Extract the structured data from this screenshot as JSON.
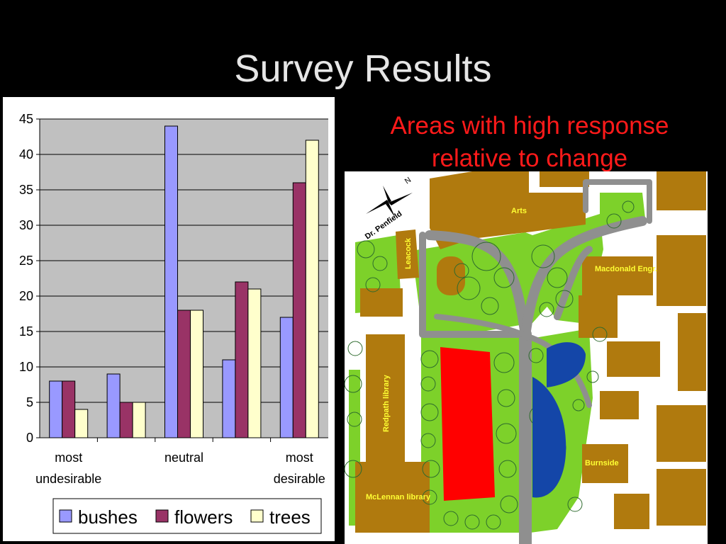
{
  "slide": {
    "title": "Survey Results",
    "caption_line1": "Areas with high response",
    "caption_line2": "relative to change"
  },
  "chart_data": {
    "type": "bar",
    "categories": [
      "most undesirable",
      "",
      "neutral",
      "",
      "most desirable"
    ],
    "category_label_lines": [
      [
        "most",
        "undesirable"
      ],
      [],
      [
        "neutral"
      ],
      [],
      [
        "most",
        "desirable"
      ]
    ],
    "series": [
      {
        "name": "bushes",
        "values": [
          8,
          9,
          44,
          11,
          17
        ],
        "color": "#9999ff"
      },
      {
        "name": "flowers",
        "values": [
          8,
          5,
          18,
          22,
          36
        ],
        "color": "#993366"
      },
      {
        "name": "trees",
        "values": [
          4,
          5,
          18,
          21,
          42
        ],
        "color": "#ffffcc"
      }
    ],
    "ylim": [
      0,
      45
    ],
    "yticks": [
      "0",
      "5",
      "10",
      "15",
      "20",
      "25",
      "30",
      "35",
      "40",
      "45"
    ],
    "grid": true,
    "plot_background": "#c0c0c0",
    "legend_position": "bottom",
    "title": "",
    "xlabel": "",
    "ylabel": ""
  },
  "map": {
    "labels": {
      "arts": "Arts",
      "leacock": "Leacock",
      "macdonald": "Macdonald Engr.",
      "redpath": "Redpath library",
      "mclennan": "McLennan library",
      "burnside": "Burnside",
      "penfield": "Dr. Penfield",
      "north": "N"
    },
    "colors": {
      "building": "#b07a0e",
      "lawn": "#7dd12a",
      "path": "#8f8f8f",
      "high_response": "#ff0000",
      "water": "#1446a8",
      "label": "#ffff33"
    }
  }
}
